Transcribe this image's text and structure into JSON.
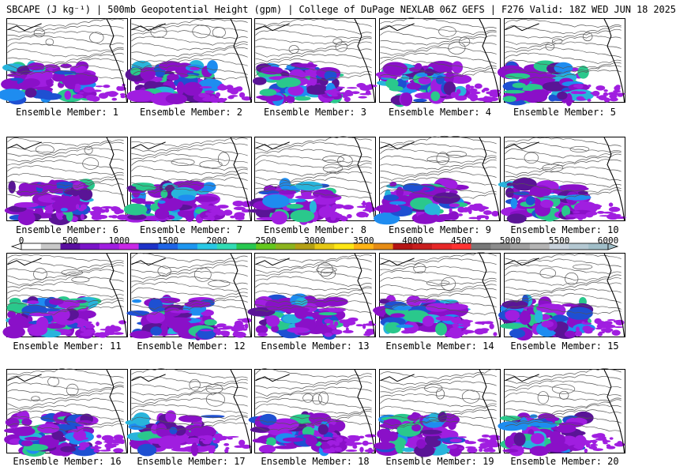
{
  "title": "SBCAPE (J kg⁻¹) | 500mb Geopotential Height (gpm) | College of DuPage NEXLAB 06Z GEFS | F276 Valid: 18Z WED JUN 18 2025",
  "member_label_prefix": "Ensemble Member: ",
  "members": [
    "1",
    "2",
    "3",
    "4",
    "5",
    "6",
    "7",
    "8",
    "9",
    "10",
    "11",
    "12",
    "13",
    "14",
    "15",
    "16",
    "17",
    "18",
    "19",
    "20"
  ],
  "colorbar": {
    "ticks": [
      "0",
      "500",
      "1000",
      "1500",
      "2000",
      "2500",
      "3000",
      "3500",
      "4000",
      "4500",
      "5000",
      "5500",
      "6000"
    ],
    "colors": [
      "#ffffff",
      "#c8c8c8",
      "#5a0fa0",
      "#7a14c8",
      "#a01ee0",
      "#c828e6",
      "#1e32c8",
      "#1e64e6",
      "#1e96f0",
      "#28c8e6",
      "#32dcb4",
      "#28c850",
      "#64c81e",
      "#8cb41e",
      "#b4a014",
      "#e6c814",
      "#ffe614",
      "#ffb414",
      "#e68c14",
      "#b41414",
      "#c81e1e",
      "#e62828",
      "#ff3232",
      "#787878",
      "#8c8c8c",
      "#a0a0a0",
      "#b4b4b4",
      "#c8d2dc",
      "#b4c8d2",
      "#a0bec8"
    ]
  }
}
